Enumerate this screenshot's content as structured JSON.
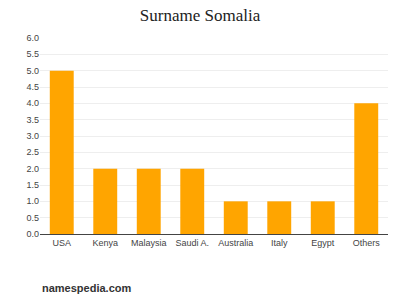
{
  "chart_data": {
    "type": "bar",
    "title": "Surname Somalia",
    "categories": [
      "USA",
      "Kenya",
      "Malaysia",
      "Saudi A.",
      "Australia",
      "Italy",
      "Egypt",
      "Others"
    ],
    "values": [
      5,
      2,
      2,
      2,
      1,
      1,
      1,
      4
    ],
    "color": "#FFA500",
    "ylim": [
      0,
      6
    ],
    "yticks": [
      {
        "value": 0,
        "label": "0.0"
      },
      0.5,
      {
        "value": 1,
        "label": "1.0"
      },
      1.5,
      {
        "value": 2,
        "label": "2.0"
      },
      2.5,
      {
        "value": 3,
        "label": "3.0"
      },
      3.5,
      {
        "value": 4,
        "label": "4.0"
      },
      4.5,
      {
        "value": 5,
        "label": "5.0"
      },
      5.5,
      {
        "value": 6,
        "label": "6.0"
      }
    ],
    "grid": true,
    "annotations": [
      "namespedia.com"
    ]
  }
}
